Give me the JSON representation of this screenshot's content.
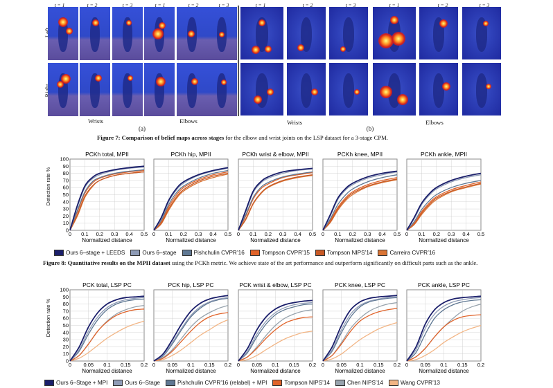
{
  "figure7": {
    "time_labels": [
      "t = 1",
      "t = 2",
      "t = 3"
    ],
    "row_labels": [
      "Left",
      "Right"
    ],
    "group_labels_a": [
      "Wrists",
      "Elbows"
    ],
    "group_labels_b": [
      "Wrists",
      "Elbows"
    ],
    "sub_a": "(a)",
    "sub_b": "(b)",
    "caption_bold": "Figure 7: Comparison of belief maps across stages",
    "caption_rest": " for the elbow and wrist joints on the LSP dataset for a 3-stage CPM."
  },
  "figure8": {
    "caption_bold": "Figure 8: Quantitative results on the MPII dataset",
    "caption_rest": " using the PCKh metric. We achieve state of the art performance and outperform significantly on difficult parts such as the ankle.",
    "legend": [
      {
        "label": "Ours 6–stage + LEEDS",
        "color": "#1b1f6b"
      },
      {
        "label": "Ours 6–stage",
        "color": "#8e9bb6"
      },
      {
        "label": "Pishchulin CVPR’16",
        "color": "#5f7893"
      },
      {
        "label": "Tompson CVPR’15",
        "color": "#e0632a"
      },
      {
        "label": "Tompson NIPS’14",
        "color": "#c85a26"
      },
      {
        "label": "Carreira CVPR’16",
        "color": "#d97435"
      }
    ]
  },
  "lsp": {
    "legend": [
      {
        "label": "Ours 6–Stage + MPI",
        "color": "#1b1f6b"
      },
      {
        "label": "Ours 6–Stage",
        "color": "#8e9bb6"
      },
      {
        "label": "Pishchulin CVPR’16 (relabel) + MPI",
        "color": "#5f7893"
      },
      {
        "label": "Tompson NIPS’14",
        "color": "#e0632a"
      },
      {
        "label": "Chen NIPS’14",
        "color": "#97a3ad"
      },
      {
        "label": "Wang CVPR’13",
        "color": "#f2b585"
      }
    ]
  },
  "axis": {
    "ylabel": "Detection rate %",
    "xlabel": "Normalized distance",
    "yticks": [
      "0",
      "10",
      "20",
      "30",
      "40",
      "50",
      "60",
      "70",
      "80",
      "90",
      "100"
    ],
    "xticks_mpii": [
      "0",
      "0.1",
      "0.2",
      "0.3",
      "0.4",
      "0.5"
    ],
    "xticks_lsp": [
      "0",
      "0.05",
      "0.1",
      "0.15",
      "0.2"
    ]
  },
  "chart_data": [
    {
      "type": "line",
      "title": "PCKh total, MPII",
      "xlabel": "Normalized distance",
      "ylabel": "Detection rate %",
      "xlim": [
        0,
        0.5
      ],
      "ylim": [
        0,
        100
      ],
      "x": [
        0,
        0.05,
        0.1,
        0.15,
        0.2,
        0.3,
        0.4,
        0.5
      ],
      "series": [
        {
          "name": "Ours 6–stage + LEEDS",
          "values": [
            0,
            35,
            62,
            74,
            80,
            85,
            88,
            90
          ]
        },
        {
          "name": "Ours 6–stage",
          "values": [
            0,
            33,
            60,
            72,
            78,
            84,
            87,
            89
          ]
        },
        {
          "name": "Pishchulin CVPR’16",
          "values": [
            0,
            28,
            54,
            68,
            74,
            80,
            83,
            85
          ]
        },
        {
          "name": "Tompson CVPR’15",
          "values": [
            0,
            26,
            52,
            66,
            73,
            79,
            82,
            84
          ]
        },
        {
          "name": "Tompson NIPS’14",
          "values": [
            0,
            22,
            48,
            62,
            70,
            77,
            80,
            82
          ]
        },
        {
          "name": "Carreira CVPR’16",
          "values": [
            0,
            20,
            46,
            61,
            70,
            77,
            80,
            82
          ]
        }
      ]
    },
    {
      "type": "line",
      "title": "PCKh hip, MPII",
      "xlabel": "Normalized distance",
      "ylabel": "Detection rate %",
      "xlim": [
        0,
        0.5
      ],
      "ylim": [
        0,
        100
      ],
      "x": [
        0,
        0.05,
        0.1,
        0.15,
        0.2,
        0.3,
        0.4,
        0.5
      ],
      "series": [
        {
          "name": "Ours 6–stage + LEEDS",
          "values": [
            0,
            18,
            42,
            58,
            68,
            78,
            84,
            88
          ]
        },
        {
          "name": "Ours 6–stage",
          "values": [
            0,
            16,
            40,
            56,
            66,
            77,
            83,
            87
          ]
        },
        {
          "name": "Pishchulin CVPR’16",
          "values": [
            0,
            14,
            36,
            52,
            62,
            73,
            80,
            84
          ]
        },
        {
          "name": "Tompson CVPR’15",
          "values": [
            0,
            12,
            33,
            49,
            60,
            71,
            78,
            82
          ]
        },
        {
          "name": "Tompson NIPS’14",
          "values": [
            0,
            10,
            30,
            46,
            57,
            69,
            76,
            80
          ]
        },
        {
          "name": "Carreira CVPR’16",
          "values": [
            0,
            9,
            28,
            44,
            55,
            67,
            74,
            79
          ]
        }
      ]
    },
    {
      "type": "line",
      "title": "PCKh wrist & elbow, MPII",
      "xlabel": "Normalized distance",
      "ylabel": "Detection rate %",
      "xlim": [
        0,
        0.5
      ],
      "ylim": [
        0,
        100
      ],
      "x": [
        0,
        0.05,
        0.1,
        0.15,
        0.2,
        0.3,
        0.4,
        0.5
      ],
      "series": [
        {
          "name": "Ours 6–stage + LEEDS",
          "values": [
            0,
            28,
            55,
            68,
            75,
            82,
            85,
            87
          ]
        },
        {
          "name": "Ours 6–stage",
          "values": [
            0,
            26,
            53,
            66,
            73,
            80,
            84,
            86
          ]
        },
        {
          "name": "Pishchulin CVPR’16",
          "values": [
            0,
            22,
            46,
            60,
            67,
            75,
            79,
            82
          ]
        },
        {
          "name": "Tompson CVPR’15",
          "values": [
            0,
            20,
            44,
            58,
            65,
            74,
            78,
            81
          ]
        },
        {
          "name": "Tompson NIPS’14",
          "values": [
            0,
            16,
            38,
            52,
            61,
            70,
            75,
            78
          ]
        },
        {
          "name": "Carreira CVPR’16",
          "values": [
            0,
            15,
            37,
            51,
            60,
            69,
            74,
            77
          ]
        }
      ]
    },
    {
      "type": "line",
      "title": "PCKh knee, MPII",
      "xlabel": "Normalized distance",
      "ylabel": "Detection rate %",
      "xlim": [
        0,
        0.5
      ],
      "ylim": [
        0,
        100
      ],
      "x": [
        0,
        0.05,
        0.1,
        0.15,
        0.2,
        0.3,
        0.4,
        0.5
      ],
      "series": [
        {
          "name": "Ours 6–stage + LEEDS",
          "values": [
            0,
            22,
            45,
            58,
            66,
            75,
            80,
            83
          ]
        },
        {
          "name": "Ours 6–stage",
          "values": [
            0,
            20,
            43,
            56,
            64,
            73,
            78,
            82
          ]
        },
        {
          "name": "Pishchulin CVPR’16",
          "values": [
            0,
            16,
            36,
            49,
            58,
            68,
            74,
            78
          ]
        },
        {
          "name": "Tompson CVPR’15",
          "values": [
            0,
            14,
            32,
            45,
            54,
            64,
            70,
            74
          ]
        },
        {
          "name": "Tompson NIPS’14",
          "values": [
            0,
            12,
            30,
            43,
            52,
            62,
            68,
            72
          ]
        },
        {
          "name": "Carreira CVPR’16",
          "values": [
            0,
            11,
            28,
            41,
            50,
            61,
            67,
            71
          ]
        }
      ]
    },
    {
      "type": "line",
      "title": "PCKh ankle, MPII",
      "xlabel": "Normalized distance",
      "ylabel": "Detection rate %",
      "xlim": [
        0,
        0.5
      ],
      "ylim": [
        0,
        100
      ],
      "x": [
        0,
        0.05,
        0.1,
        0.15,
        0.2,
        0.3,
        0.4,
        0.5
      ],
      "series": [
        {
          "name": "Ours 6–stage + LEEDS",
          "values": [
            0,
            18,
            38,
            51,
            60,
            70,
            76,
            80
          ]
        },
        {
          "name": "Ours 6–stage",
          "values": [
            0,
            16,
            36,
            49,
            58,
            68,
            74,
            78
          ]
        },
        {
          "name": "Pishchulin CVPR’16",
          "values": [
            0,
            12,
            29,
            41,
            50,
            60,
            66,
            70
          ]
        },
        {
          "name": "Tompson CVPR’15",
          "values": [
            0,
            10,
            26,
            38,
            47,
            57,
            63,
            68
          ]
        },
        {
          "name": "Tompson NIPS’14",
          "values": [
            0,
            9,
            24,
            36,
            45,
            55,
            61,
            66
          ]
        },
        {
          "name": "Carreira CVPR’16",
          "values": [
            0,
            8,
            22,
            34,
            43,
            54,
            60,
            65
          ]
        }
      ]
    },
    {
      "type": "line",
      "title": "PCK total, LSP PC",
      "xlabel": "Normalized distance",
      "ylabel": "Detection rate %",
      "xlim": [
        0,
        0.2
      ],
      "ylim": [
        0,
        100
      ],
      "x": [
        0,
        0.025,
        0.05,
        0.075,
        0.1,
        0.125,
        0.15,
        0.175,
        0.2
      ],
      "series": [
        {
          "name": "Ours 6–Stage + MPI",
          "values": [
            0,
            20,
            48,
            68,
            80,
            86,
            89,
            90,
            91
          ]
        },
        {
          "name": "Ours 6–Stage",
          "values": [
            0,
            16,
            42,
            62,
            75,
            82,
            86,
            88,
            89
          ]
        },
        {
          "name": "Pishchulin CVPR’16 (relabel) + MPI",
          "values": [
            0,
            14,
            38,
            58,
            72,
            80,
            84,
            86,
            87
          ]
        },
        {
          "name": "Tompson NIPS’14",
          "values": [
            0,
            8,
            24,
            42,
            55,
            64,
            69,
            72,
            73
          ]
        },
        {
          "name": "Chen NIPS’14",
          "values": [
            0,
            8,
            24,
            42,
            56,
            66,
            72,
            76,
            78
          ]
        },
        {
          "name": "Wang CVPR’13",
          "values": [
            0,
            4,
            12,
            22,
            32,
            40,
            47,
            52,
            56
          ]
        }
      ]
    },
    {
      "type": "line",
      "title": "PCK hip, LSP PC",
      "xlabel": "Normalized distance",
      "ylabel": "Detection rate %",
      "xlim": [
        0,
        0.2
      ],
      "ylim": [
        0,
        100
      ],
      "x": [
        0,
        0.025,
        0.05,
        0.075,
        0.1,
        0.125,
        0.15,
        0.175,
        0.2
      ],
      "series": [
        {
          "name": "Ours 6–Stage + MPI",
          "values": [
            0,
            10,
            30,
            52,
            70,
            81,
            87,
            90,
            92
          ]
        },
        {
          "name": "Ours 6–Stage",
          "values": [
            0,
            8,
            26,
            46,
            64,
            76,
            83,
            87,
            89
          ]
        },
        {
          "name": "Pishchulin CVPR’16 (relabel) + MPI",
          "values": [
            0,
            7,
            24,
            44,
            62,
            74,
            82,
            86,
            88
          ]
        },
        {
          "name": "Tompson NIPS’14",
          "values": [
            0,
            4,
            14,
            28,
            42,
            54,
            62,
            66,
            68
          ]
        },
        {
          "name": "Chen NIPS’14",
          "values": [
            0,
            5,
            16,
            32,
            48,
            60,
            68,
            74,
            78
          ]
        },
        {
          "name": "Wang CVPR’13",
          "values": [
            0,
            2,
            8,
            16,
            26,
            36,
            44,
            52,
            58
          ]
        }
      ]
    },
    {
      "type": "line",
      "title": "PCK wrist & elbow, LSP PC",
      "xlabel": "Normalized distance",
      "ylabel": "Detection rate %",
      "xlim": [
        0,
        0.2
      ],
      "ylim": [
        0,
        100
      ],
      "x": [
        0,
        0.025,
        0.05,
        0.075,
        0.1,
        0.125,
        0.15,
        0.175,
        0.2
      ],
      "series": [
        {
          "name": "Ours 6–Stage + MPI",
          "values": [
            0,
            18,
            44,
            62,
            73,
            79,
            82,
            84,
            85
          ]
        },
        {
          "name": "Ours 6–Stage",
          "values": [
            0,
            14,
            38,
            56,
            68,
            75,
            79,
            81,
            82
          ]
        },
        {
          "name": "Pishchulin CVPR’16 (relabel) + MPI",
          "values": [
            0,
            12,
            34,
            52,
            65,
            72,
            76,
            79,
            80
          ]
        },
        {
          "name": "Tompson NIPS’14",
          "values": [
            0,
            6,
            18,
            32,
            44,
            53,
            58,
            61,
            62
          ]
        },
        {
          "name": "Chen NIPS’14",
          "values": [
            0,
            6,
            20,
            36,
            50,
            60,
            66,
            70,
            72
          ]
        },
        {
          "name": "Wang CVPR’13",
          "values": [
            0,
            2,
            8,
            16,
            24,
            31,
            36,
            40,
            42
          ]
        }
      ]
    },
    {
      "type": "line",
      "title": "PCK knee, LSP PC",
      "xlabel": "Normalized distance",
      "ylabel": "Detection rate %",
      "xlim": [
        0,
        0.2
      ],
      "ylim": [
        0,
        100
      ],
      "x": [
        0,
        0.025,
        0.05,
        0.075,
        0.1,
        0.125,
        0.15,
        0.175,
        0.2
      ],
      "series": [
        {
          "name": "Ours 6–Stage + MPI",
          "values": [
            0,
            20,
            50,
            72,
            83,
            88,
            90,
            91,
            92
          ]
        },
        {
          "name": "Ours 6–Stage",
          "values": [
            0,
            16,
            44,
            66,
            78,
            84,
            87,
            89,
            90
          ]
        },
        {
          "name": "Pishchulin CVPR’16 (relabel) + MPI",
          "values": [
            0,
            14,
            40,
            62,
            76,
            83,
            86,
            88,
            89
          ]
        },
        {
          "name": "Tompson NIPS’14",
          "values": [
            0,
            8,
            24,
            42,
            56,
            64,
            69,
            72,
            74
          ]
        },
        {
          "name": "Chen NIPS’14",
          "values": [
            0,
            8,
            26,
            46,
            60,
            70,
            76,
            80,
            82
          ]
        },
        {
          "name": "Wang CVPR’13",
          "values": [
            0,
            3,
            10,
            20,
            30,
            38,
            45,
            50,
            54
          ]
        }
      ]
    },
    {
      "type": "line",
      "title": "PCK ankle, LSP PC",
      "xlabel": "Normalized distance",
      "ylabel": "Detection rate %",
      "xlim": [
        0,
        0.2
      ],
      "ylim": [
        0,
        100
      ],
      "x": [
        0,
        0.025,
        0.05,
        0.075,
        0.1,
        0.125,
        0.15,
        0.175,
        0.2
      ],
      "series": [
        {
          "name": "Ours 6–Stage + MPI",
          "values": [
            0,
            20,
            52,
            72,
            82,
            87,
            89,
            90,
            91
          ]
        },
        {
          "name": "Ours 6–Stage",
          "values": [
            0,
            16,
            46,
            66,
            77,
            83,
            86,
            88,
            89
          ]
        },
        {
          "name": "Pishchulin CVPR’16 (relabel) + MPI",
          "values": [
            0,
            12,
            38,
            60,
            72,
            79,
            83,
            85,
            86
          ]
        },
        {
          "name": "Tompson NIPS’14",
          "values": [
            0,
            6,
            18,
            34,
            48,
            57,
            62,
            64,
            65
          ]
        },
        {
          "name": "Chen NIPS’14",
          "values": [
            0,
            6,
            18,
            34,
            48,
            60,
            70,
            76,
            80
          ]
        },
        {
          "name": "Wang CVPR’13",
          "values": [
            0,
            2,
            8,
            16,
            26,
            34,
            41,
            46,
            50
          ]
        }
      ]
    }
  ]
}
